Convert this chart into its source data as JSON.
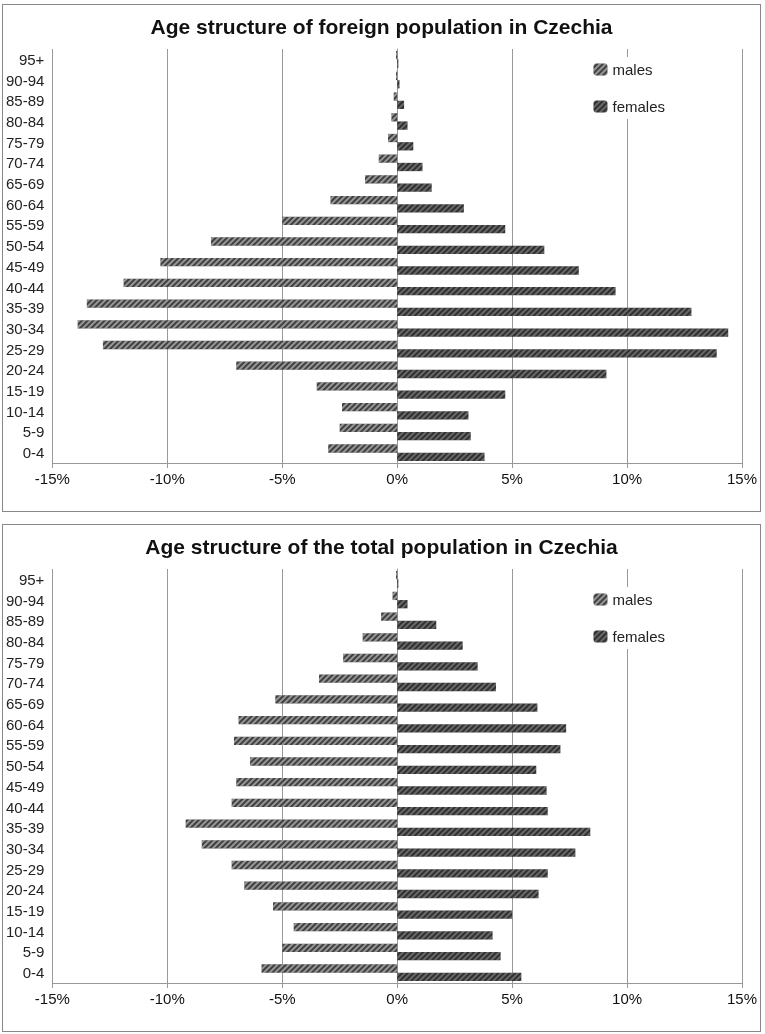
{
  "chart_data": [
    {
      "type": "bar",
      "orientation": "horizontal",
      "title": "Age structure of foreign population in Czechia",
      "categories": [
        "95+",
        "90-94",
        "85-89",
        "80-84",
        "75-79",
        "70-74",
        "65-69",
        "60-64",
        "55-59",
        "50-54",
        "45-49",
        "40-44",
        "35-39",
        "30-34",
        "25-29",
        "20-24",
        "15-19",
        "10-14",
        "5-9",
        "0-4"
      ],
      "series": [
        {
          "name": "males",
          "color": "#404040",
          "values": [
            -0.05,
            -0.05,
            -0.15,
            -0.25,
            -0.4,
            -0.8,
            -1.4,
            -2.9,
            -5.0,
            -8.1,
            -10.3,
            -11.9,
            -13.5,
            -13.9,
            -12.8,
            -7.0,
            -3.5,
            -2.4,
            -2.5,
            -3.0
          ]
        },
        {
          "name": "females",
          "color": "#303030",
          "values": [
            0.05,
            0.1,
            0.3,
            0.45,
            0.7,
            1.1,
            1.5,
            2.9,
            4.7,
            6.4,
            7.9,
            9.5,
            12.8,
            14.4,
            13.9,
            9.1,
            4.7,
            3.1,
            3.2,
            3.8
          ]
        }
      ],
      "xlim": [
        -15,
        15
      ],
      "xticks": [
        {
          "value": -15,
          "label": "-15%"
        },
        {
          "value": -10,
          "label": "-10%"
        },
        {
          "value": -5,
          "label": "-5%"
        },
        {
          "value": 0,
          "label": "0%"
        },
        {
          "value": 5,
          "label": "5%"
        },
        {
          "value": 10,
          "label": "10%"
        },
        {
          "value": 15,
          "label": "15%"
        }
      ],
      "grid": "x",
      "legend": "top right"
    },
    {
      "type": "bar",
      "orientation": "horizontal",
      "title": "Age structure of the total population in Czechia",
      "categories": [
        "95+",
        "90-94",
        "85-89",
        "80-84",
        "75-79",
        "70-74",
        "65-69",
        "60-64",
        "55-59",
        "50-54",
        "45-49",
        "40-44",
        "35-39",
        "30-34",
        "25-29",
        "20-24",
        "15-19",
        "10-14",
        "5-9",
        "0-4"
      ],
      "series": [
        {
          "name": "males",
          "color": "#404040",
          "values": [
            -0.05,
            -0.2,
            -0.7,
            -1.5,
            -2.35,
            -3.4,
            -5.3,
            -6.9,
            -7.1,
            -6.4,
            -7.0,
            -7.2,
            -9.2,
            -8.5,
            -7.2,
            -6.65,
            -5.4,
            -4.5,
            -5.0,
            -5.9
          ]
        },
        {
          "name": "females",
          "color": "#303030",
          "values": [
            0.05,
            0.45,
            1.7,
            2.85,
            3.5,
            4.3,
            6.1,
            7.35,
            7.1,
            6.05,
            6.5,
            6.55,
            8.4,
            7.75,
            6.55,
            6.15,
            5.0,
            4.15,
            4.5,
            5.4
          ]
        }
      ],
      "xlim": [
        -15,
        15
      ],
      "xticks": [
        {
          "value": -15,
          "label": "-15%"
        },
        {
          "value": -10,
          "label": "-10%"
        },
        {
          "value": -5,
          "label": "-5%"
        },
        {
          "value": 0,
          "label": "0%"
        },
        {
          "value": 5,
          "label": "5%"
        },
        {
          "value": 10,
          "label": "10%"
        },
        {
          "value": 15,
          "label": "15%"
        }
      ],
      "grid": "x",
      "legend": "top right"
    }
  ]
}
